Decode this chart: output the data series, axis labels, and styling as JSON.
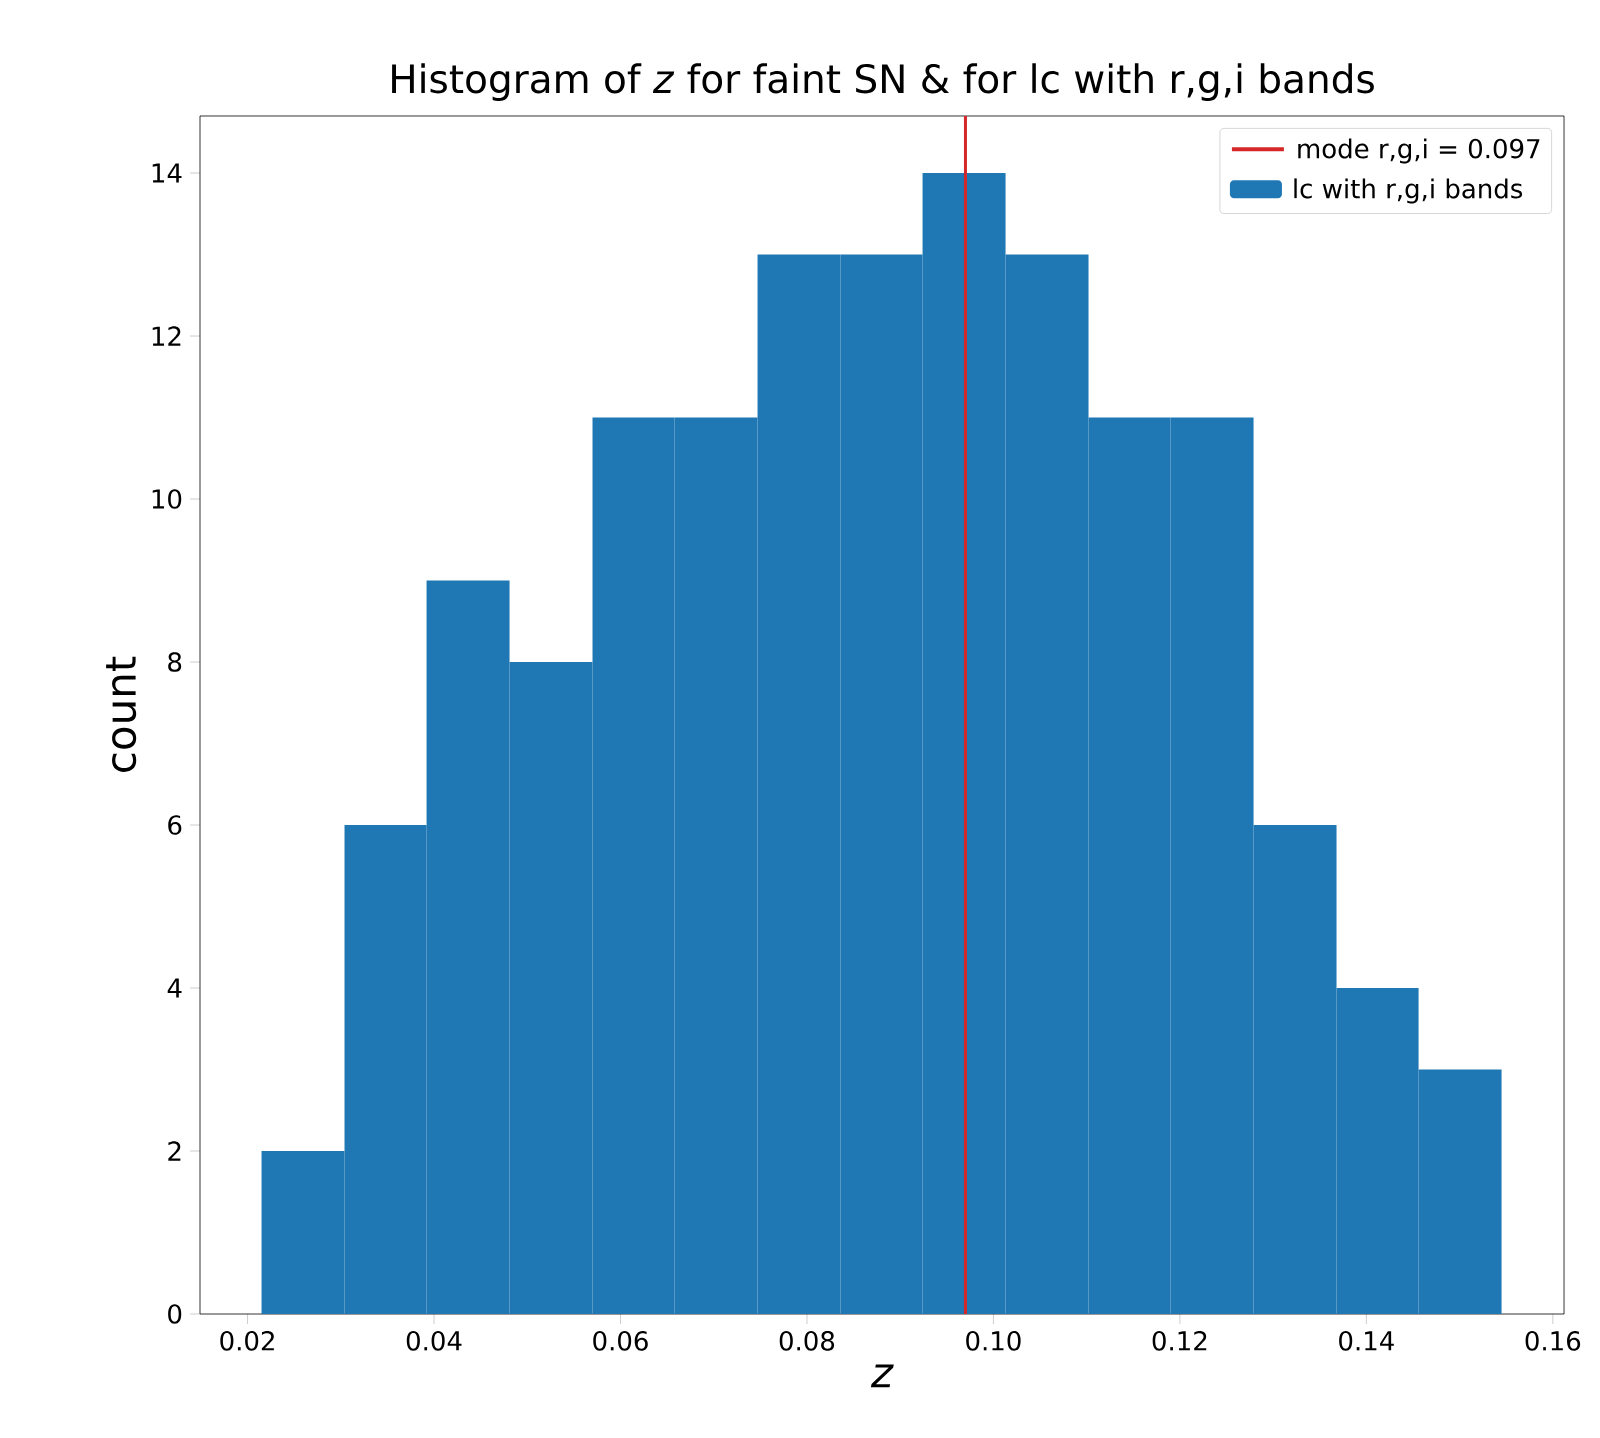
{
  "chart_data": {
    "type": "histogram",
    "title": "Histogram of *z* for faint SN & for lc with r,g,i bands",
    "xlabel": "z",
    "ylabel": "count",
    "bins": [
      0.0215,
      0.0304,
      0.0392,
      0.0481,
      0.057,
      0.0658,
      0.0747,
      0.0836,
      0.0924,
      0.1013,
      0.1102,
      0.119,
      0.1279,
      0.1368,
      0.1456,
      0.1545
    ],
    "series": [
      {
        "type": "line",
        "name": "mode r,g,i = 0.097",
        "color": "#d62728",
        "line_style": "solid",
        "x": [
          0.097,
          0.097
        ],
        "values": [
          0,
          14.7
        ]
      },
      {
        "name": "lc with r,g,i bands",
        "color": "#1f77b4",
        "values": [
          2,
          6,
          9,
          8,
          11,
          11,
          13,
          13,
          14,
          13,
          11,
          11,
          6,
          4,
          3
        ]
      }
    ],
    "xlim": [
      0.0149,
      0.1612
    ],
    "xticks": [
      0.02,
      0.04,
      0.06,
      0.08,
      {
        "value": 0.1,
        "label": "0.10"
      },
      0.12,
      0.14,
      0.16
    ],
    "ylim": [
      0,
      14.7
    ],
    "yticks": [
      0,
      2,
      4,
      6,
      8,
      10,
      12,
      14
    ],
    "legend": "top right",
    "grid": false
  }
}
